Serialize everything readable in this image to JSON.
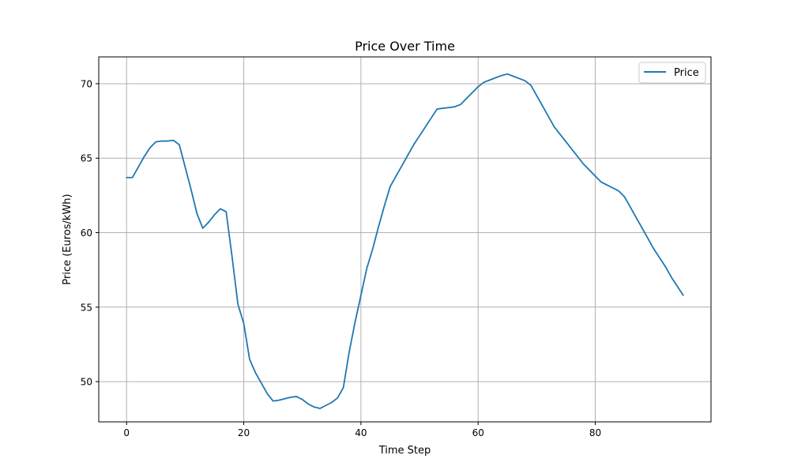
{
  "chart_data": {
    "type": "line",
    "title": "Price Over Time",
    "xlabel": "Time Step",
    "ylabel": "Price (Euros/kWh)",
    "xlim": [
      -4.75,
      99.75
    ],
    "ylim": [
      47.3,
      71.8
    ],
    "xticks": [
      0,
      20,
      40,
      60,
      80
    ],
    "yticks": [
      50,
      55,
      60,
      65,
      70
    ],
    "grid": true,
    "legend_position": "top-right",
    "series": [
      {
        "name": "Price",
        "color": "#1f77b4",
        "x": [
          0,
          1,
          2,
          3,
          4,
          5,
          6,
          7,
          8,
          9,
          10,
          11,
          12,
          13,
          14,
          15,
          16,
          17,
          18,
          19,
          20,
          21,
          22,
          23,
          24,
          25,
          26,
          27,
          28,
          29,
          30,
          31,
          32,
          33,
          34,
          35,
          36,
          37,
          38,
          39,
          40,
          41,
          42,
          43,
          44,
          45,
          46,
          47,
          48,
          49,
          50,
          51,
          52,
          53,
          54,
          55,
          56,
          57,
          58,
          59,
          60,
          61,
          62,
          63,
          64,
          65,
          66,
          67,
          68,
          69,
          70,
          71,
          72,
          73,
          74,
          75,
          76,
          77,
          78,
          79,
          80,
          81,
          82,
          83,
          84,
          85,
          86,
          87,
          88,
          89,
          90,
          91,
          92,
          93,
          94,
          95
        ],
        "y": [
          63.7,
          63.7,
          64.4,
          65.1,
          65.7,
          66.1,
          66.15,
          66.15,
          66.2,
          65.9,
          64.4,
          62.9,
          61.3,
          60.3,
          60.7,
          61.2,
          61.6,
          61.4,
          58.4,
          55.2,
          53.9,
          51.5,
          50.6,
          49.9,
          49.2,
          48.7,
          48.75,
          48.85,
          48.95,
          49.0,
          48.8,
          48.5,
          48.3,
          48.2,
          48.4,
          48.6,
          48.9,
          49.6,
          52.0,
          54.0,
          55.8,
          57.6,
          58.9,
          60.4,
          61.8,
          63.1,
          63.8,
          64.5,
          65.2,
          65.9,
          66.5,
          67.1,
          67.7,
          68.3,
          68.35,
          68.4,
          68.45,
          68.6,
          69.0,
          69.4,
          69.8,
          70.1,
          70.25,
          70.4,
          70.55,
          70.65,
          70.5,
          70.35,
          70.2,
          69.9,
          69.2,
          68.5,
          67.8,
          67.1,
          66.6,
          66.1,
          65.6,
          65.1,
          64.6,
          64.2,
          63.8,
          63.4,
          63.2,
          63.0,
          62.8,
          62.4,
          61.7,
          61.0,
          60.3,
          59.6,
          58.9,
          58.3,
          57.7,
          57.0,
          56.4,
          55.8
        ]
      }
    ]
  }
}
